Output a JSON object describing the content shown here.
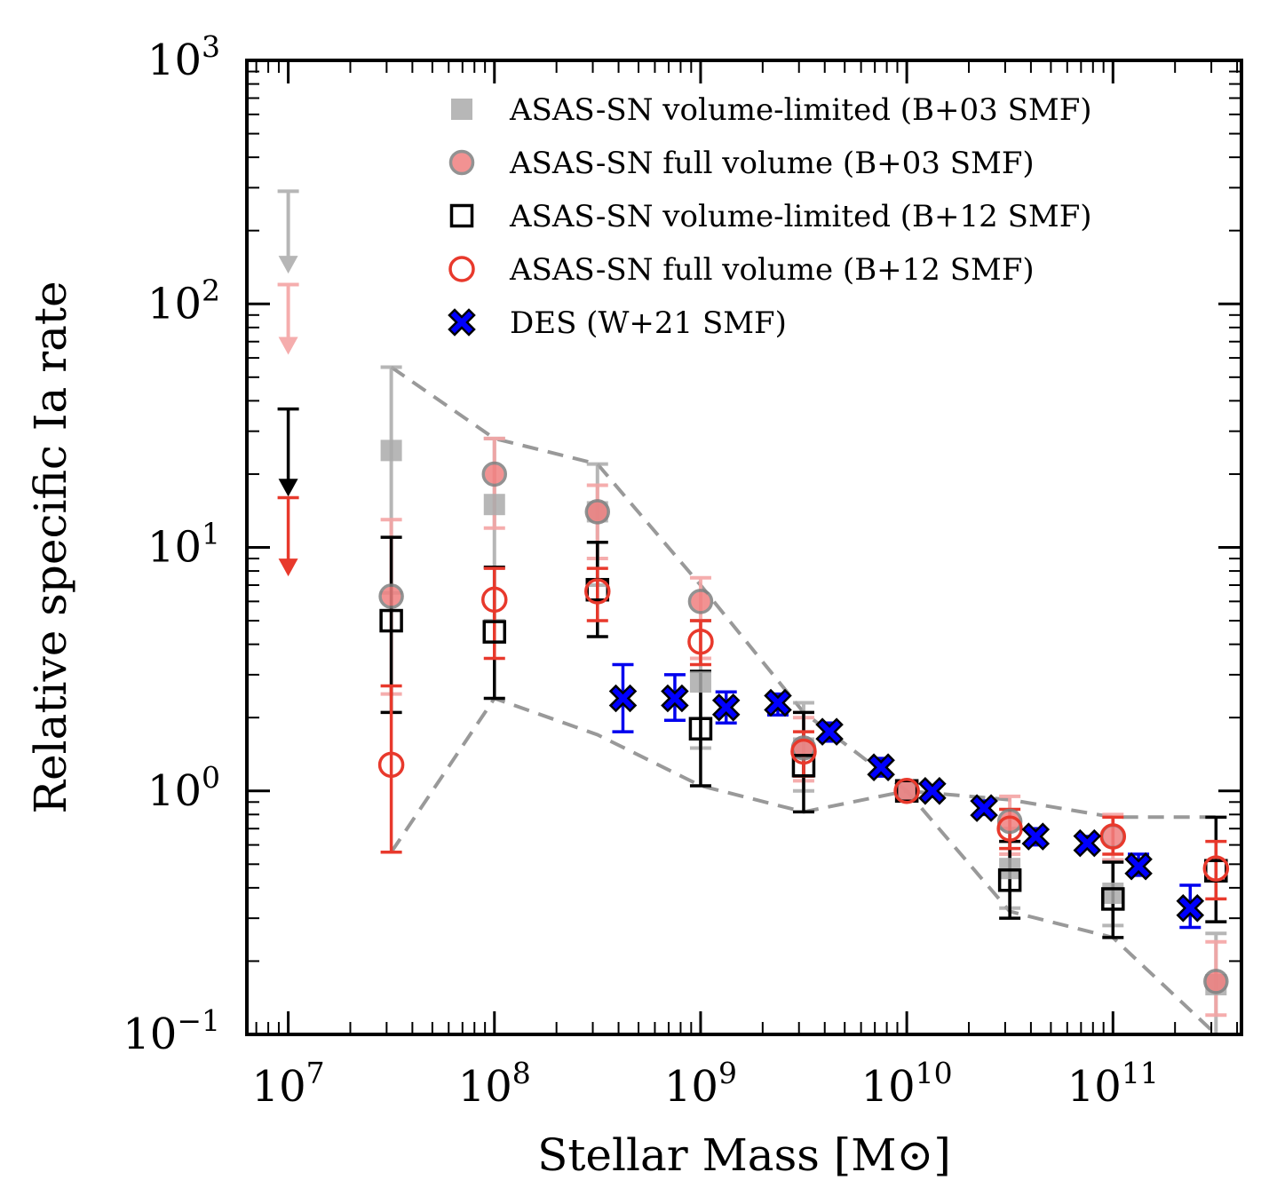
{
  "chart_data": {
    "type": "scatter",
    "xlabel": "Stellar Mass [M⊙]",
    "ylabel": "Relative specific Ia rate",
    "xscale": "log",
    "yscale": "log",
    "xlim": [
      6300000,
      420000000000
    ],
    "ylim": [
      0.1,
      1000
    ],
    "x_ticks": [
      {
        "base": "10",
        "exp": "7",
        "value": 10000000
      },
      {
        "base": "10",
        "exp": "8",
        "value": 100000000
      },
      {
        "base": "10",
        "exp": "9",
        "value": 1000000000
      },
      {
        "base": "10",
        "exp": "10",
        "value": 10000000000
      },
      {
        "base": "10",
        "exp": "11",
        "value": 100000000000
      }
    ],
    "y_ticks": [
      {
        "base": "10",
        "exp": "−1",
        "value": 0.1
      },
      {
        "base": "10",
        "exp": "0",
        "value": 1
      },
      {
        "base": "10",
        "exp": "1",
        "value": 10
      },
      {
        "base": "10",
        "exp": "2",
        "value": 100
      },
      {
        "base": "10",
        "exp": "3",
        "value": 1000
      }
    ],
    "legend_position": "top-right",
    "series": [
      {
        "name": "ASAS-SN volume-limited (B+03 SMF)",
        "marker": "square-filled",
        "color": "#aaaaaa",
        "points": [
          {
            "x": 31600000,
            "y": 25,
            "lo": 6.5,
            "hi": 55
          },
          {
            "x": 100000000,
            "y": 15,
            "lo": 5,
            "hi": 28
          },
          {
            "x": 316000000,
            "y": 14,
            "lo": 7,
            "hi": 22
          },
          {
            "x": 1000000000,
            "y": 2.8,
            "lo": 1.5,
            "hi": 5
          },
          {
            "x": 3160000000,
            "y": 1.5,
            "lo": 1.0,
            "hi": 2.3
          },
          {
            "x": 10000000000,
            "y": 1.0
          },
          {
            "x": 31600000000,
            "y": 0.48,
            "lo": 0.33,
            "hi": 0.7
          },
          {
            "x": 100000000000,
            "y": 0.38,
            "lo": 0.28,
            "hi": 0.52
          },
          {
            "x": 316000000000,
            "y": 0.16,
            "lo": 0.1,
            "hi": 0.26
          }
        ],
        "upper_limits": [
          {
            "x": 10000000,
            "from": 290,
            "to": 140
          }
        ]
      },
      {
        "name": "ASAS-SN full volume (B+03 SMF)",
        "marker": "circle-filled",
        "color": "#f08080",
        "edge": "#808080",
        "points": [
          {
            "x": 31600000,
            "y": 6.3,
            "lo": 2.5,
            "hi": 13
          },
          {
            "x": 100000000,
            "y": 20,
            "lo": 12,
            "hi": 28
          },
          {
            "x": 316000000,
            "y": 14,
            "lo": 9,
            "hi": 18
          },
          {
            "x": 1000000000,
            "y": 6,
            "lo": 3.5,
            "hi": 7.5
          },
          {
            "x": 3160000000,
            "y": 1.5,
            "lo": 1.1,
            "hi": 2.0
          },
          {
            "x": 10000000000,
            "y": 1.0
          },
          {
            "x": 31600000000,
            "y": 0.75,
            "lo": 0.55,
            "hi": 0.95
          },
          {
            "x": 100000000000,
            "y": 0.65,
            "lo": 0.52,
            "hi": 0.8
          },
          {
            "x": 316000000000,
            "y": 0.165,
            "lo": 0.12,
            "hi": 0.24
          }
        ],
        "upper_limits": [
          {
            "x": 10000000,
            "from": 120,
            "to": 65
          }
        ]
      },
      {
        "name": "ASAS-SN volume-limited (B+12 SMF)",
        "marker": "square-open",
        "color": "#000000",
        "points": [
          {
            "x": 31600000,
            "y": 5,
            "lo": 2.1,
            "hi": 11
          },
          {
            "x": 100000000,
            "y": 4.5,
            "lo": 2.4,
            "hi": 8.3
          },
          {
            "x": 316000000,
            "y": 6.7,
            "lo": 4.3,
            "hi": 10.5
          },
          {
            "x": 1000000000,
            "y": 1.8,
            "lo": 1.05,
            "hi": 3.1
          },
          {
            "x": 3160000000,
            "y": 1.27,
            "lo": 0.82,
            "hi": 2.1
          },
          {
            "x": 10000000000,
            "y": 1.0
          },
          {
            "x": 31600000000,
            "y": 0.43,
            "lo": 0.3,
            "hi": 0.62
          },
          {
            "x": 100000000000,
            "y": 0.36,
            "lo": 0.25,
            "hi": 0.51
          },
          {
            "x": 316000000000,
            "y": 0.47,
            "lo": 0.29,
            "hi": 0.78
          }
        ],
        "upper_limits": [
          {
            "x": 10000000,
            "from": 37,
            "to": 17
          }
        ]
      },
      {
        "name": "ASAS-SN full volume (B+12 SMF)",
        "marker": "circle-open",
        "color": "#e8392c",
        "points": [
          {
            "x": 31600000,
            "y": 1.28,
            "lo": 0.56,
            "hi": 2.7
          },
          {
            "x": 100000000,
            "y": 6.1,
            "lo": 3.5,
            "hi": 8.2
          },
          {
            "x": 316000000,
            "y": 6.6,
            "lo": 5,
            "hi": 8.2
          },
          {
            "x": 1000000000,
            "y": 4.1,
            "lo": 3.3,
            "hi": 5.0
          },
          {
            "x": 3160000000,
            "y": 1.45,
            "lo": 1.15,
            "hi": 1.75
          },
          {
            "x": 10000000000,
            "y": 1.0
          },
          {
            "x": 31600000000,
            "y": 0.7,
            "lo": 0.58,
            "hi": 0.84
          },
          {
            "x": 100000000000,
            "y": 0.65,
            "lo": 0.55,
            "hi": 0.78
          },
          {
            "x": 316000000000,
            "y": 0.48,
            "lo": 0.36,
            "hi": 0.62
          }
        ],
        "upper_limits": [
          {
            "x": 10000000,
            "from": 16,
            "to": 8
          }
        ]
      },
      {
        "name": "DES (W+21 SMF)",
        "marker": "x-filled",
        "color": "#0000ff",
        "edge": "#000000",
        "points": [
          {
            "x": 420000000,
            "y": 2.4,
            "lo": 1.75,
            "hi": 3.3
          },
          {
            "x": 750000000,
            "y": 2.4,
            "lo": 1.95,
            "hi": 3.0
          },
          {
            "x": 1330000000,
            "y": 2.2,
            "lo": 1.9,
            "hi": 2.55
          },
          {
            "x": 2370000000,
            "y": 2.3,
            "lo": 2.05,
            "hi": 2.5
          },
          {
            "x": 4220000000,
            "y": 1.75,
            "lo": 1.6,
            "hi": 1.9
          },
          {
            "x": 7500000000,
            "y": 1.25,
            "lo": 1.15,
            "hi": 1.36
          },
          {
            "x": 13300000000,
            "y": 1.0,
            "lo": 0.95,
            "hi": 1.05
          },
          {
            "x": 23700000000,
            "y": 0.85,
            "lo": 0.8,
            "hi": 0.91
          },
          {
            "x": 42200000000,
            "y": 0.65,
            "lo": 0.6,
            "hi": 0.7
          },
          {
            "x": 75000000000,
            "y": 0.61,
            "lo": 0.58,
            "hi": 0.65
          },
          {
            "x": 133000000000,
            "y": 0.49,
            "lo": 0.45,
            "hi": 0.55
          },
          {
            "x": 237000000000,
            "y": 0.33,
            "lo": 0.275,
            "hi": 0.41
          }
        ]
      }
    ],
    "envelope": {
      "style": "dashed",
      "color": "#999999",
      "upper": [
        {
          "x": 31600000,
          "y": 55
        },
        {
          "x": 100000000,
          "y": 28
        },
        {
          "x": 316000000,
          "y": 22
        },
        {
          "x": 1000000000,
          "y": 7
        },
        {
          "x": 3160000000,
          "y": 2.1
        },
        {
          "x": 10000000000,
          "y": 1.0
        },
        {
          "x": 31600000000,
          "y": 0.92
        },
        {
          "x": 100000000000,
          "y": 0.78
        },
        {
          "x": 316000000000,
          "y": 0.78
        }
      ],
      "lower": [
        {
          "x": 31600000,
          "y": 0.56
        },
        {
          "x": 100000000,
          "y": 2.4
        },
        {
          "x": 316000000,
          "y": 1.7
        },
        {
          "x": 1000000000,
          "y": 1.05
        },
        {
          "x": 3160000000,
          "y": 0.82
        },
        {
          "x": 10000000000,
          "y": 1.0
        },
        {
          "x": 31600000000,
          "y": 0.32
        },
        {
          "x": 100000000000,
          "y": 0.25
        },
        {
          "x": 316000000000,
          "y": 0.1
        }
      ]
    }
  }
}
